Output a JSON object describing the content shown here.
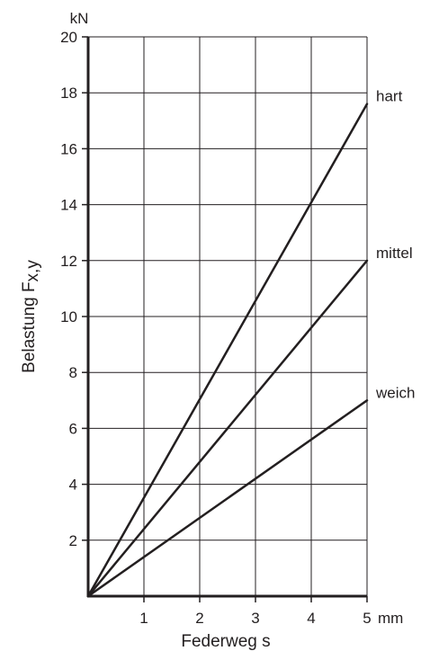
{
  "chart_data": {
    "type": "line",
    "title": "",
    "xlabel": "Federweg s",
    "ylabel": "Belastung F",
    "ylabel_subscript": "x,y",
    "x_unit": "mm",
    "y_unit": "kN",
    "xlim": [
      0,
      5
    ],
    "ylim": [
      0,
      20
    ],
    "x_ticks": [
      "1",
      "2",
      "3",
      "4",
      "5"
    ],
    "y_ticks": [
      "2",
      "4",
      "6",
      "8",
      "10",
      "12",
      "14",
      "16",
      "18",
      "20"
    ],
    "grid": true,
    "series": [
      {
        "name": "hart",
        "x": [
          0,
          5
        ],
        "y": [
          0,
          17.6
        ]
      },
      {
        "name": "mittel",
        "x": [
          0,
          5
        ],
        "y": [
          0,
          12.0
        ]
      },
      {
        "name": "weich",
        "x": [
          0,
          5
        ],
        "y": [
          0,
          7.0
        ]
      }
    ],
    "colors": {
      "line": "#231f20",
      "grid": "#231f20",
      "axis": "#231f20"
    }
  }
}
